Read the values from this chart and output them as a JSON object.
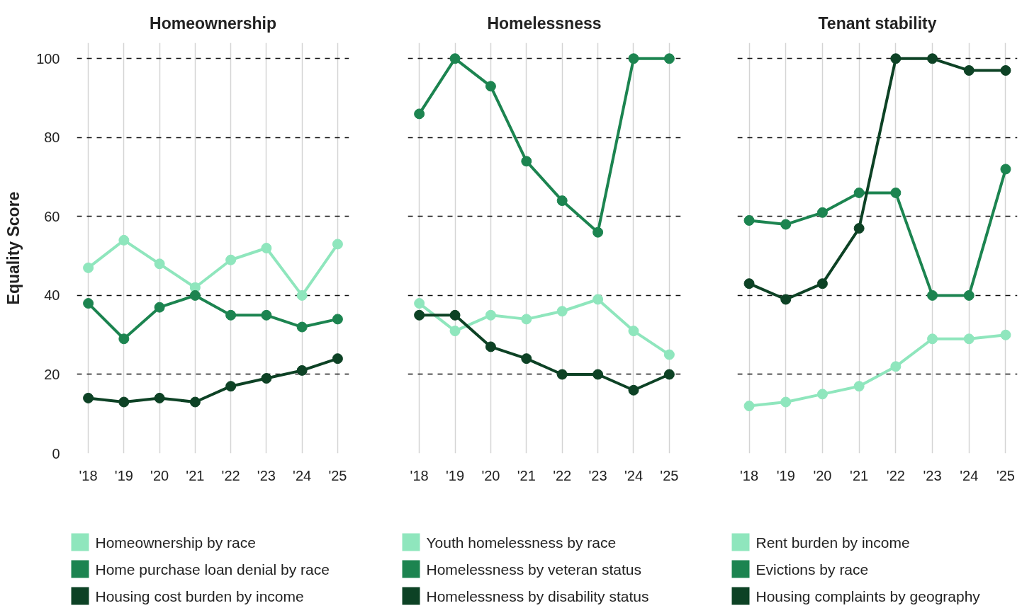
{
  "chart_data": [
    {
      "type": "line",
      "title": "Homeownership",
      "ylabel": "Equality Score",
      "categories": [
        "'18",
        "'19",
        "'20",
        "'21",
        "'22",
        "'23",
        "'24",
        "'25"
      ],
      "ylim": [
        0,
        104
      ],
      "yticks": [
        0,
        20,
        40,
        60,
        80,
        100
      ],
      "grid": true,
      "legend": "bottom",
      "marker": "circle",
      "line_style": "solid",
      "series": [
        {
          "name": "Homeownership by race",
          "color": "#8fe6bd",
          "values": [
            47,
            54,
            48,
            42,
            49,
            52,
            40,
            53
          ]
        },
        {
          "name": "Home purchase loan denial by race",
          "color": "#1c8450",
          "values": [
            38,
            29,
            37,
            40,
            35,
            35,
            32,
            34
          ]
        },
        {
          "name": "Housing cost burden by income",
          "color": "#0d4225",
          "values": [
            14,
            13,
            14,
            13,
            17,
            19,
            21,
            24
          ]
        }
      ]
    },
    {
      "type": "line",
      "title": "Homelessness",
      "categories": [
        "'18",
        "'19",
        "'20",
        "'21",
        "'22",
        "'23",
        "'24",
        "'25"
      ],
      "ylim": [
        0,
        104
      ],
      "yticks": [
        0,
        20,
        40,
        60,
        80,
        100
      ],
      "tick_labels": "x",
      "grid": true,
      "legend": "bottom",
      "marker": "circle",
      "line_style": "solid",
      "series": [
        {
          "name": "Youth homelessness by race",
          "color": "#8fe6bd",
          "values": [
            38,
            31,
            35,
            34,
            36,
            39,
            31,
            25
          ]
        },
        {
          "name": "Homelessness by veteran status",
          "color": "#1c8450",
          "values": [
            86,
            100,
            93,
            74,
            64,
            56,
            100,
            100
          ]
        },
        {
          "name": "Homelessness by disability status",
          "color": "#0d4225",
          "values": [
            35,
            35,
            27,
            24,
            20,
            20,
            16,
            20
          ]
        }
      ]
    },
    {
      "type": "line",
      "title": "Tenant stability",
      "categories": [
        "'18",
        "'19",
        "'20",
        "'21",
        "'22",
        "'23",
        "'24",
        "'25"
      ],
      "ylim": [
        0,
        104
      ],
      "yticks": [
        0,
        20,
        40,
        60,
        80,
        100
      ],
      "tick_labels": "x",
      "grid": true,
      "legend": "bottom",
      "marker": "circle",
      "line_style": "solid",
      "series": [
        {
          "name": "Rent burden by income",
          "color": "#8fe6bd",
          "values": [
            12,
            13,
            15,
            17,
            22,
            29,
            29,
            30
          ]
        },
        {
          "name": "Evictions by race",
          "color": "#1c8450",
          "values": [
            59,
            58,
            61,
            66,
            66,
            40,
            40,
            72
          ]
        },
        {
          "name": "Housing complaints by geography",
          "color": "#0d4225",
          "values": [
            43,
            39,
            43,
            57,
            100,
            100,
            97,
            97
          ]
        }
      ]
    }
  ]
}
